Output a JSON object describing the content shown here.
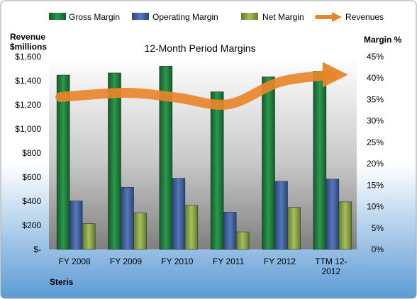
{
  "chart_data": {
    "type": "bar",
    "title": "12-Month Period Margins",
    "company": "Steris",
    "left_axis_label_line1": "Revenue",
    "left_axis_label_line2": "$millions",
    "right_axis_label": "Margin %",
    "categories": [
      "FY 2008",
      "FY 2009",
      "FY 2010",
      "FY 2011",
      "FY 2012",
      "TTM 12-2012"
    ],
    "category_lines": [
      [
        "FY 2008"
      ],
      [
        "FY 2009"
      ],
      [
        "FY 2010"
      ],
      [
        "FY 2011"
      ],
      [
        "FY 2012"
      ],
      [
        "TTM 12-",
        "2012"
      ]
    ],
    "left_ticks": [
      "$-",
      "$200",
      "$400",
      "$600",
      "$800",
      "$1,000",
      "$1,200",
      "$1,400",
      "$1,600"
    ],
    "right_ticks": [
      "0%",
      "5%",
      "10%",
      "15%",
      "20%",
      "25%",
      "30%",
      "35%",
      "40%",
      "45%"
    ],
    "ylim_left": [
      0,
      1600
    ],
    "ylim_right": [
      0,
      45
    ],
    "series": [
      {
        "name": "Gross Margin",
        "axis": "right",
        "kind": "bar",
        "color": "#1e7a3c",
        "values": [
          40.7,
          41.2,
          42.8,
          36.8,
          40.3,
          41.6
        ]
      },
      {
        "name": "Operating Margin",
        "axis": "right",
        "kind": "bar",
        "color": "#3f5f9e",
        "values": [
          11.3,
          14.5,
          16.6,
          8.7,
          15.9,
          16.4
        ]
      },
      {
        "name": "Net Margin",
        "axis": "right",
        "kind": "bar",
        "color": "#8aa24a",
        "values": [
          6.0,
          8.5,
          10.3,
          4.1,
          9.8,
          11.1
        ]
      },
      {
        "name": "Revenues",
        "axis": "left",
        "kind": "arrow-line",
        "color": "#e8852a",
        "values": [
          1265,
          1300,
          1260,
          1205,
          1390,
          1450
        ]
      }
    ],
    "legend_position": "top",
    "grid": false
  },
  "colors": {
    "plot_top": "#ffffff",
    "plot_bottom": "#7f7f7f",
    "page_top": "#ffffff",
    "page_bottom": "#5b9bd5"
  }
}
